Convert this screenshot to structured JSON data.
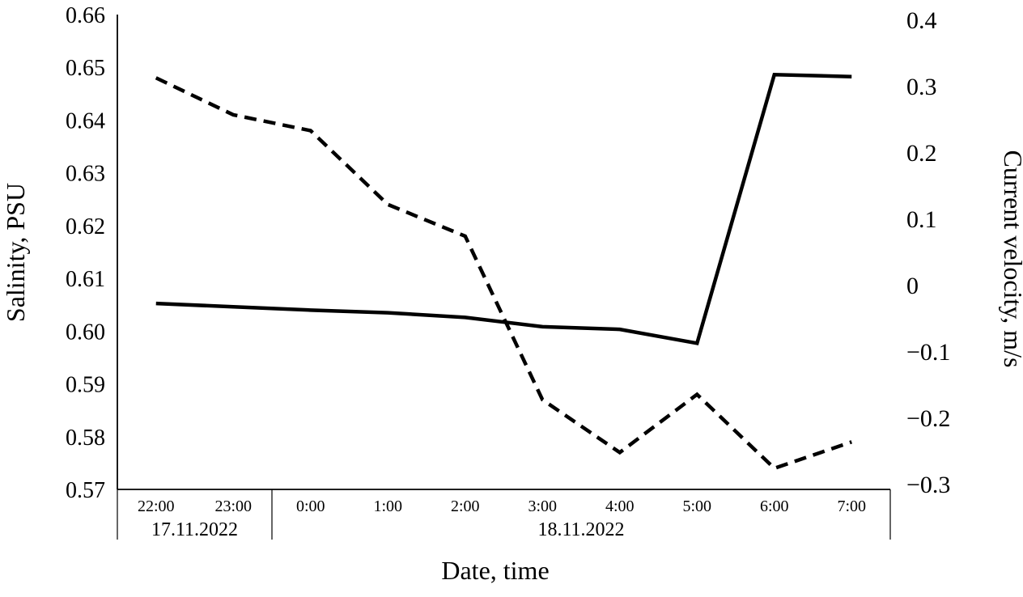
{
  "chart_data": {
    "type": "line",
    "title": "",
    "xlabel": "Date, time",
    "grid": false,
    "legend": "none",
    "background": "#ffffff",
    "axis_color": "#000000",
    "x_categories": [
      "22:00",
      "23:00",
      "0:00",
      "1:00",
      "2:00",
      "3:00",
      "4:00",
      "5:00",
      "6:00",
      "7:00"
    ],
    "x_group_labels": [
      {
        "label": "17.11.2022",
        "from": 0,
        "to": 1
      },
      {
        "label": "18.11.2022",
        "from": 2,
        "to": 9
      }
    ],
    "left_axis": {
      "label": "Salinity, PSU",
      "min": 0.57,
      "max": 0.66,
      "tick_step": 0.01,
      "tick_values": [
        0.66,
        0.65,
        0.64,
        0.63,
        0.62,
        0.61,
        0.6,
        0.59,
        0.58,
        0.57
      ],
      "tick_labels": [
        "0.66",
        "0.65",
        "0.64",
        "0.63",
        "0.62",
        "0.61",
        "0.60",
        "0.59",
        "0.58",
        "0.57"
      ]
    },
    "right_axis": {
      "label": "Current velocity, m/s",
      "min": -0.3,
      "max": 0.4,
      "tick_step": 0.1,
      "tick_values": [
        0.4,
        0.3,
        0.2,
        0.1,
        0,
        -0.1,
        -0.2,
        -0.3
      ],
      "tick_labels": [
        "0.4",
        "0.3",
        "0.2",
        "0.1",
        "0",
        "−0.1",
        "−0.2",
        "−0.3"
      ]
    },
    "series": [
      {
        "name": "Salinity, PSU",
        "axis": "left",
        "line_style": "dashed",
        "color": "#000000",
        "values": [
          0.648,
          0.641,
          0.638,
          0.624,
          0.618,
          0.587,
          0.577,
          0.588,
          0.574,
          0.579
        ]
      },
      {
        "name": "Current velocity, m/s",
        "axis": "right",
        "line_style": "solid",
        "color": "#000000",
        "values": [
          -0.027,
          -0.032,
          -0.037,
          -0.041,
          -0.048,
          -0.062,
          -0.066,
          -0.087,
          0.318,
          0.315
        ]
      }
    ]
  }
}
